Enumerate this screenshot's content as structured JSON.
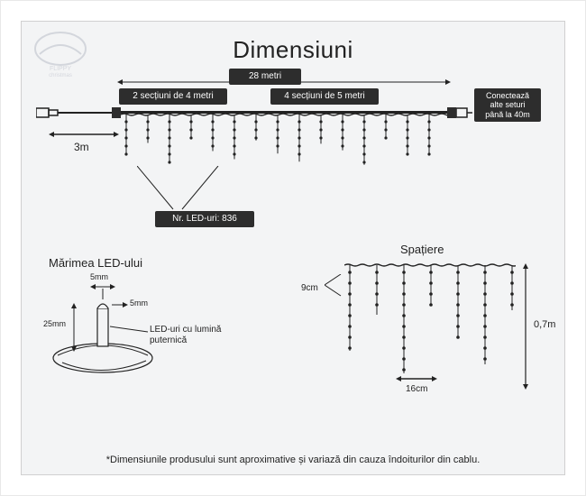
{
  "title": "Dimensiuni",
  "top_bar": {
    "total_length": "28 metri",
    "left_sections": "2 secțiuni de 4 metri",
    "right_sections": "4 secțiuni de 5 metri",
    "connect_note": "Conectează\nalte seturi\npână la 40m",
    "lead_cable": "3m",
    "led_count": "Nr. LED-uri: 836"
  },
  "led_size": {
    "header": "Mărimea LED-ului",
    "top_dim": "5mm",
    "side_dim": "5mm",
    "height_dim": "25mm",
    "note": "LED-uri cu lumină\nputernică"
  },
  "spacing": {
    "header": "Spațiere",
    "drop_height": "0,7m",
    "pitch_h": "16cm",
    "pitch_v": "9cm"
  },
  "footnote": "*Dimensiunile produsului sunt aproximative și variază din cauza îndoiturilor din cablu.",
  "colors": {
    "panel_bg": "#f3f4f5",
    "label_bg": "#2d2d2d",
    "stroke": "#222222"
  },
  "icicle": {
    "pattern": [
      50,
      35,
      60,
      30,
      45,
      55,
      32,
      48,
      58,
      36,
      44,
      62,
      30,
      50
    ],
    "bead_r": 1.6,
    "wire_color": "#222222"
  }
}
